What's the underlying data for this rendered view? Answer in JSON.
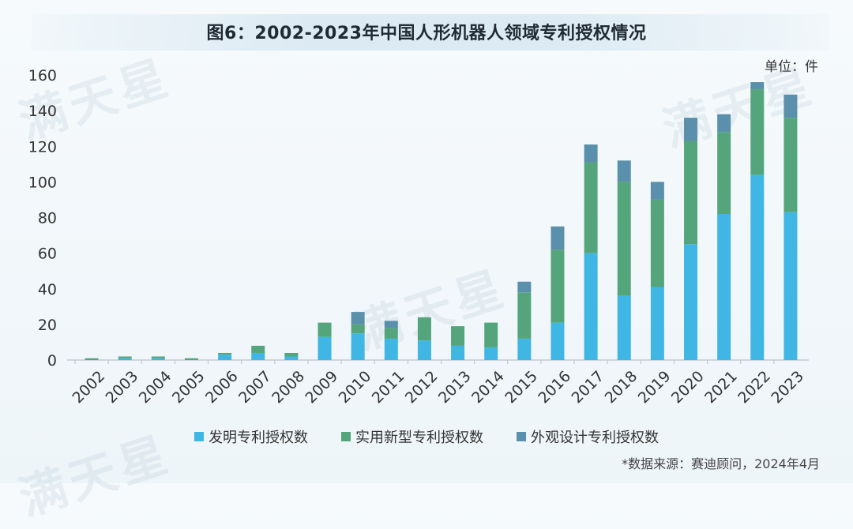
{
  "title": "图6：2002-2023年中国人形机器人领域专利授权情况",
  "unit_label": "单位：件",
  "source": "*数据来源：赛迪顾问，2024年4月",
  "watermark": "满天星",
  "colors": {
    "invention": "#3fb6e3",
    "utility": "#55a57c",
    "design": "#5a90ab",
    "axis": "#b9c3c9"
  },
  "chart_data": {
    "type": "bar",
    "stacked": true,
    "categories": [
      "2002",
      "2003",
      "2004",
      "2005",
      "2006",
      "2007",
      "2008",
      "2009",
      "2010",
      "2011",
      "2012",
      "2013",
      "2014",
      "2015",
      "2016",
      "2017",
      "2018",
      "2019",
      "2020",
      "2021",
      "2022",
      "2023"
    ],
    "series": [
      {
        "name": "发明专利授权数",
        "values": [
          0,
          1,
          1,
          0,
          3,
          4,
          2,
          13,
          15,
          12,
          11,
          8,
          7,
          12,
          21,
          60,
          36,
          41,
          65,
          82,
          104,
          83
        ]
      },
      {
        "name": "实用新型专利授权数",
        "values": [
          1,
          1,
          1,
          1,
          1,
          4,
          2,
          8,
          5,
          6,
          13,
          11,
          14,
          26,
          41,
          51,
          64,
          49,
          58,
          46,
          48,
          53
        ]
      },
      {
        "name": "外观设计专利授权数",
        "values": [
          0,
          0,
          0,
          0,
          0,
          0,
          0,
          0,
          7,
          4,
          0,
          0,
          0,
          6,
          13,
          10,
          12,
          10,
          13,
          10,
          4,
          13
        ]
      }
    ],
    "ylim": [
      0,
      160
    ],
    "yticks": [
      0,
      20,
      40,
      60,
      80,
      100,
      120,
      140,
      160
    ],
    "grid": false,
    "legend": "bottom-center"
  }
}
